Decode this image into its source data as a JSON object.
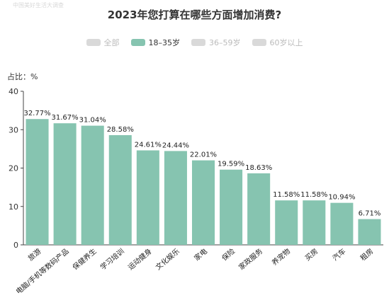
{
  "watermark": "中国美好生活大调查",
  "legend": {
    "items": [
      {
        "label": "全部",
        "active": false,
        "color": "#d9d9d9"
      },
      {
        "label": "18–35岁",
        "active": true,
        "color": "#86c4b0"
      },
      {
        "label": "36–59岁",
        "active": false,
        "color": "#d9d9d9"
      },
      {
        "label": "60岁以上",
        "active": false,
        "color": "#d9d9d9"
      }
    ],
    "active_text_color": "#333333",
    "inactive_text_color": "#bbbbbb"
  },
  "chart_data": {
    "type": "bar",
    "title": "2023年您打算在哪些方面增加消费?",
    "ylabel": "占比：%",
    "xlabel": "",
    "ylim": [
      0,
      40
    ],
    "yticks": [
      0,
      10,
      20,
      30,
      40
    ],
    "grid": false,
    "legend_position": "top",
    "bar_color": "#86c4b0",
    "categories": [
      "旅游",
      "电脑/手机等数码产品",
      "保健养生",
      "学习培训",
      "运动健身",
      "文化娱乐",
      "家电",
      "保险",
      "家政服务",
      "养宠物",
      "买房",
      "汽车",
      "租房"
    ],
    "values": [
      32.77,
      31.67,
      31.04,
      28.58,
      24.61,
      24.44,
      22.01,
      19.59,
      18.63,
      11.58,
      11.58,
      10.94,
      6.71
    ],
    "value_labels": [
      "32.77%",
      "31.67%",
      "31.04%",
      "28.58%",
      "24.61%",
      "24.44%",
      "22.01%",
      "19.59%",
      "18.63%",
      "11.58%",
      "11.58%",
      "10.94%",
      "6.71%"
    ]
  }
}
